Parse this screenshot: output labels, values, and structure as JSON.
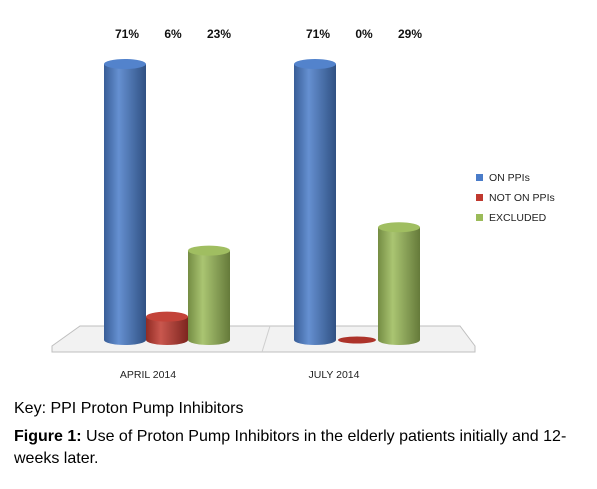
{
  "chart_data": {
    "type": "bar",
    "categories": [
      "APRIL 2014",
      "JULY 2014"
    ],
    "series": [
      {
        "name": "ON PPIs",
        "values": [
          71,
          71
        ],
        "labels": [
          "71%",
          "71%"
        ],
        "color": "#4a7cc9"
      },
      {
        "name": "NOT ON PPIs",
        "values": [
          6,
          0
        ],
        "labels": [
          "6%",
          "0%"
        ],
        "color": "#c0392f"
      },
      {
        "name": "EXCLUDED",
        "values": [
          23,
          29
        ],
        "labels": [
          "23%",
          "29%"
        ],
        "color": "#9bbb59"
      }
    ],
    "ylim": [
      0,
      71
    ],
    "style": "3d-cylinder",
    "legend": "right",
    "grid": false
  },
  "caption": {
    "key": "Key: PPI Proton Pump Inhibitors",
    "figure_label": "Figure 1:",
    "figure_text": "Use of Proton Pump Inhibitors in the elderly patients initially and 12-weeks later."
  }
}
